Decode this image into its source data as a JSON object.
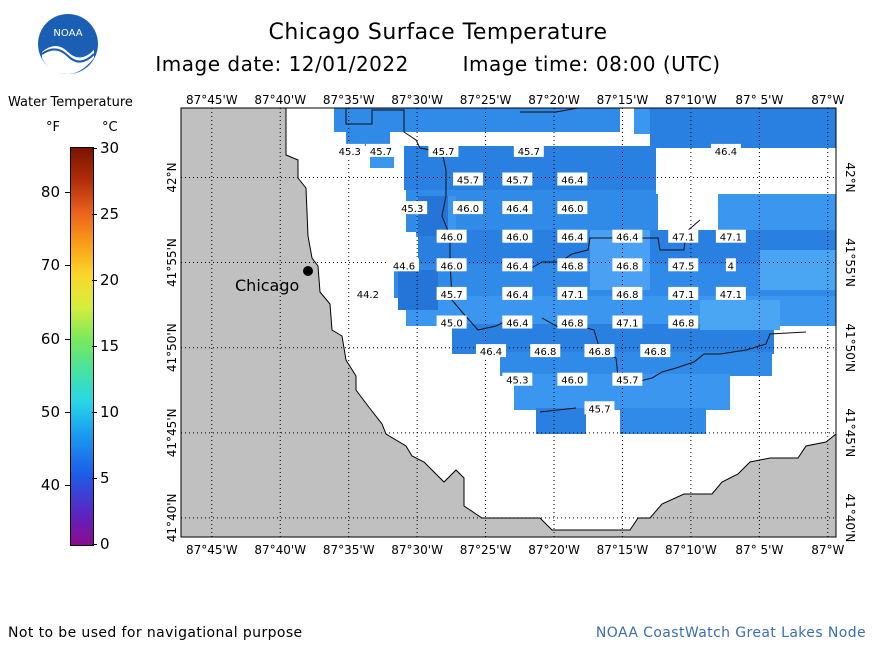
{
  "title": "Chicago Surface Temperature",
  "image_date": "Image date: 12/01/2022",
  "image_time": "Image time: 08:00 (UTC)",
  "logo_text": "NOAA",
  "legend": {
    "title": "Water Temperature",
    "unit_f": "°F",
    "unit_c": "°C",
    "f_ticks": [
      {
        "label": "80",
        "value": 80
      },
      {
        "label": "70",
        "value": 70
      },
      {
        "label": "60",
        "value": 60
      },
      {
        "label": "50",
        "value": 50
      },
      {
        "label": "40",
        "value": 40
      }
    ],
    "c_ticks": [
      {
        "label": "30",
        "value": 30
      },
      {
        "label": "25",
        "value": 25
      },
      {
        "label": "20",
        "value": 20
      },
      {
        "label": "15",
        "value": 15
      },
      {
        "label": "10",
        "value": 10
      },
      {
        "label": "5",
        "value": 5
      },
      {
        "label": "0",
        "value": 0
      }
    ]
  },
  "axes": {
    "lon_labels": [
      "87°45'W",
      "87°40'W",
      "87°35'W",
      "87°30'W",
      "87°25'W",
      "87°20'W",
      "87°15'W",
      "87°10'W",
      "87° 5'W",
      "87°W"
    ],
    "lat_labels": [
      "42°N",
      "41°55'N",
      "41°50'N",
      "41°45'N",
      "41°40'N"
    ]
  },
  "city": {
    "name": "Chicago"
  },
  "temperatures": [
    {
      "label": "45.3",
      "lon": -87.582,
      "lat": 42.026
    },
    {
      "label": "45.7",
      "lon": -87.544,
      "lat": 42.026
    },
    {
      "label": "45.7",
      "lon": -87.468,
      "lat": 42.026
    },
    {
      "label": "45.7",
      "lon": -87.364,
      "lat": 42.026
    },
    {
      "label": "46.4",
      "lon": -87.124,
      "lat": 42.026
    },
    {
      "label": "45.7",
      "lon": -87.438,
      "lat": 41.998
    },
    {
      "label": "45.7",
      "lon": -87.378,
      "lat": 41.998
    },
    {
      "label": "46.4",
      "lon": -87.311,
      "lat": 41.998
    },
    {
      "label": "45.3",
      "lon": -87.506,
      "lat": 41.97
    },
    {
      "label": "46.0",
      "lon": -87.438,
      "lat": 41.97
    },
    {
      "label": "46.4",
      "lon": -87.378,
      "lat": 41.97
    },
    {
      "label": "46.0",
      "lon": -87.311,
      "lat": 41.97
    },
    {
      "label": "46.0",
      "lon": -87.458,
      "lat": 41.942
    },
    {
      "label": "46.0",
      "lon": -87.378,
      "lat": 41.942
    },
    {
      "label": "46.4",
      "lon": -87.311,
      "lat": 41.942
    },
    {
      "label": "46.4",
      "lon": -87.244,
      "lat": 41.942
    },
    {
      "label": "47.1",
      "lon": -87.176,
      "lat": 41.942
    },
    {
      "label": "47.1",
      "lon": -87.118,
      "lat": 41.942
    },
    {
      "label": "44.6",
      "lon": -87.516,
      "lat": 41.914
    },
    {
      "label": "46.0",
      "lon": -87.458,
      "lat": 41.914
    },
    {
      "label": "46.4",
      "lon": -87.378,
      "lat": 41.914
    },
    {
      "label": "46.8",
      "lon": -87.311,
      "lat": 41.914
    },
    {
      "label": "46.8",
      "lon": -87.244,
      "lat": 41.914
    },
    {
      "label": "47.5",
      "lon": -87.176,
      "lat": 41.914
    },
    {
      "label": "4",
      "lon": -87.118,
      "lat": 41.914
    },
    {
      "label": "44.2",
      "lon": -87.56,
      "lat": 41.886
    },
    {
      "label": "45.7",
      "lon": -87.458,
      "lat": 41.886
    },
    {
      "label": "46.4",
      "lon": -87.378,
      "lat": 41.886
    },
    {
      "label": "47.1",
      "lon": -87.311,
      "lat": 41.886
    },
    {
      "label": "46.8",
      "lon": -87.244,
      "lat": 41.886
    },
    {
      "label": "47.1",
      "lon": -87.176,
      "lat": 41.886
    },
    {
      "label": "47.1",
      "lon": -87.118,
      "lat": 41.886
    },
    {
      "label": "45.0",
      "lon": -87.458,
      "lat": 41.858
    },
    {
      "label": "46.4",
      "lon": -87.378,
      "lat": 41.858
    },
    {
      "label": "46.8",
      "lon": -87.311,
      "lat": 41.858
    },
    {
      "label": "47.1",
      "lon": -87.244,
      "lat": 41.858
    },
    {
      "label": "46.8",
      "lon": -87.176,
      "lat": 41.858
    },
    {
      "label": "46.4",
      "lon": -87.41,
      "lat": 41.83
    },
    {
      "label": "46.8",
      "lon": -87.344,
      "lat": 41.83
    },
    {
      "label": "46.8",
      "lon": -87.278,
      "lat": 41.83
    },
    {
      "label": "46.8",
      "lon": -87.21,
      "lat": 41.83
    },
    {
      "label": "45.3",
      "lon": -87.378,
      "lat": 41.802
    },
    {
      "label": "46.0",
      "lon": -87.311,
      "lat": 41.802
    },
    {
      "label": "45.7",
      "lon": -87.244,
      "lat": 41.802
    },
    {
      "label": "45.7",
      "lon": -87.278,
      "lat": 41.774
    }
  ],
  "footer": {
    "disclaimer": "Not to be used for navigational purpose",
    "credit": "NOAA CoastWatch Great Lakes Node"
  }
}
